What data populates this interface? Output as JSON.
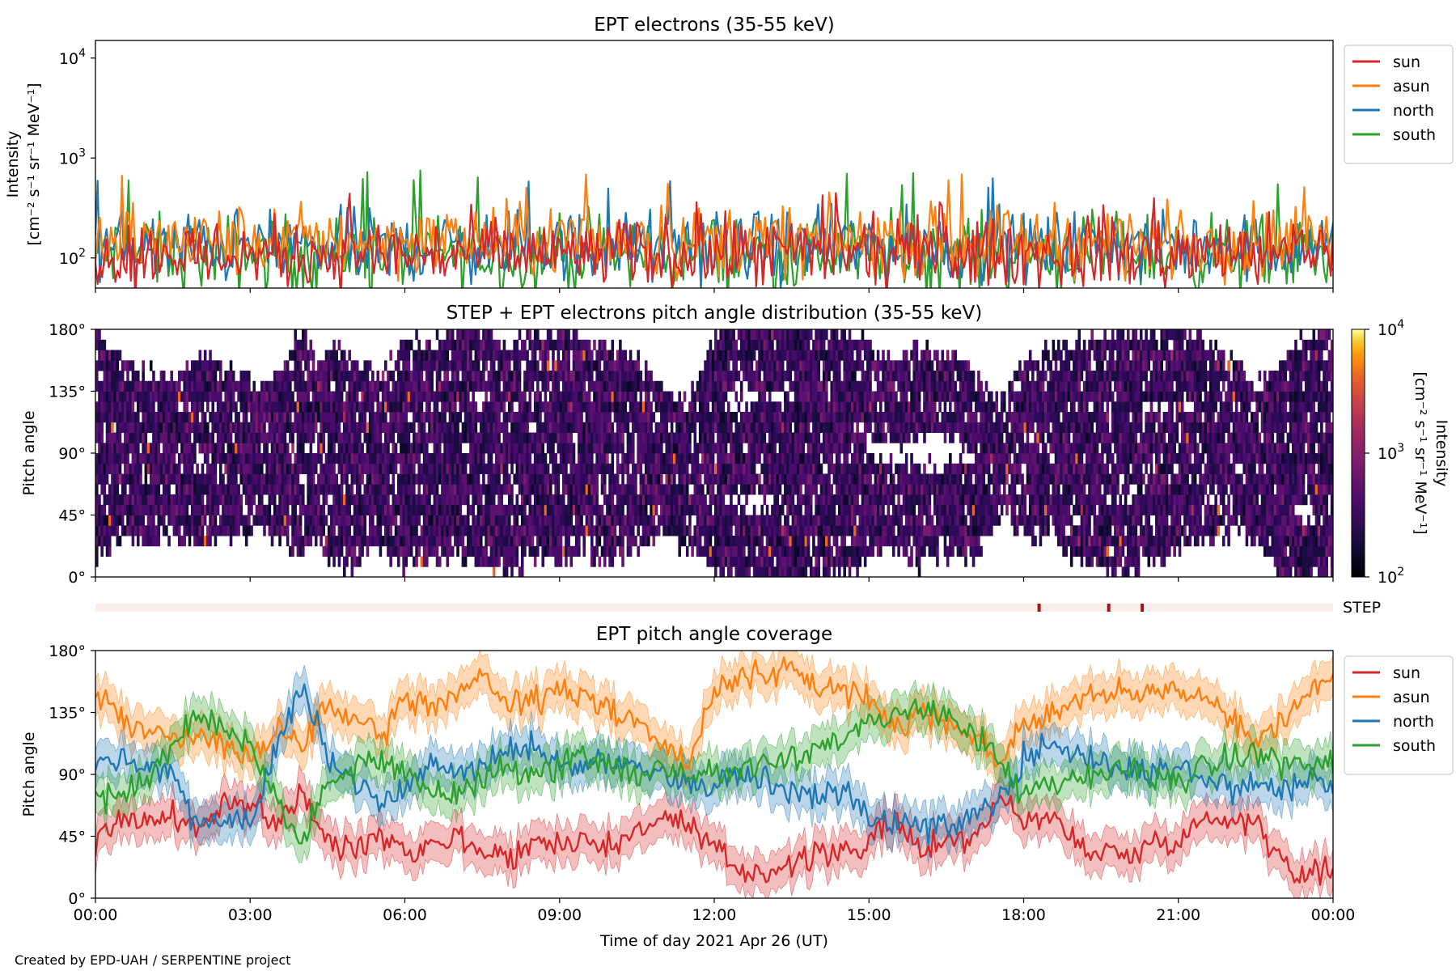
{
  "figure": {
    "xlabel": "Time of day 2021 Apr 26 (UT)",
    "x_ticks": [
      "00:00",
      "03:00",
      "06:00",
      "09:00",
      "12:00",
      "15:00",
      "18:00",
      "21:00",
      "00:00"
    ],
    "credit": "Created by EPD-UAH / SERPENTINE project"
  },
  "chart_data": [
    {
      "type": "line",
      "title": "EPT electrons (35-55 keV)",
      "ylabel_line1": "Intensity",
      "ylabel_line2": "[cm⁻² s⁻¹ sr⁻¹ MeV⁻¹]",
      "yscale": "log",
      "ylim": [
        50,
        15000
      ],
      "y_ticks": [
        {
          "value": 100,
          "base": "10",
          "exp": "2"
        },
        {
          "value": 1000,
          "base": "10",
          "exp": "3"
        },
        {
          "value": 10000,
          "base": "10",
          "exp": "4"
        }
      ],
      "xlim_hours": [
        0,
        24
      ],
      "legend_placement": "outside-right",
      "series": [
        {
          "name": "sun",
          "color": "#d62728",
          "typical": 110,
          "spread": 0.55,
          "peak": 460
        },
        {
          "name": "asun",
          "color": "#ff7f0e",
          "typical": 150,
          "spread": 0.55,
          "peak": 700
        },
        {
          "name": "north",
          "color": "#1f77b4",
          "typical": 130,
          "spread": 0.55,
          "peak": 650
        },
        {
          "name": "south",
          "color": "#2ca02c",
          "typical": 110,
          "spread": 0.6,
          "peak": 760
        }
      ]
    },
    {
      "type": "heatmap",
      "title": "STEP + EPT electrons pitch angle distribution (35-55 keV)",
      "ylabel": "Pitch angle",
      "ylim": [
        0,
        180
      ],
      "y_ticks": [
        "0°",
        "45°",
        "90°",
        "135°",
        "180°"
      ],
      "colorbar": {
        "label_line1": "Intensity",
        "label_line2": "[cm⁻² s⁻¹ sr⁻¹ MeV⁻¹]",
        "scale": "log",
        "range": [
          100,
          10000
        ],
        "ticks": [
          {
            "value": 100,
            "base": "10",
            "exp": "2"
          },
          {
            "value": 1000,
            "base": "10",
            "exp": "3"
          },
          {
            "value": 10000,
            "base": "10",
            "exp": "4"
          }
        ],
        "colormap": "inferno"
      },
      "values_note_typical": 130
    },
    {
      "type": "bar",
      "label": "STEP",
      "background_color": "#fbeee8",
      "mark_color": "#a51414",
      "mark_times_hours": [
        18.3,
        19.65,
        20.3
      ]
    },
    {
      "type": "line",
      "title": "EPT pitch angle coverage",
      "ylabel": "Pitch angle",
      "ylim": [
        0,
        180
      ],
      "y_ticks": [
        "0°",
        "45°",
        "90°",
        "135°",
        "180°"
      ],
      "xlim_hours": [
        0,
        24
      ],
      "legend_placement": "outside-right",
      "series": [
        {
          "name": "sun",
          "color": "#d62728",
          "x_hours": [
            0,
            0.5,
            1,
            1.5,
            2,
            2.5,
            3,
            3.5,
            4,
            4.5,
            5,
            5.5,
            6,
            6.5,
            7,
            7.5,
            8,
            8.5,
            9,
            9.5,
            10,
            10.5,
            11,
            11.5,
            12,
            12.5,
            13,
            13.5,
            14,
            14.5,
            15,
            15.5,
            16,
            16.5,
            17,
            17.5,
            18,
            18.5,
            19,
            19.5,
            20,
            20.5,
            21,
            21.5,
            22,
            22.5,
            23,
            23.5,
            24
          ],
          "values": [
            40,
            60,
            55,
            60,
            50,
            65,
            70,
            55,
            75,
            40,
            35,
            50,
            35,
            40,
            45,
            35,
            30,
            40,
            40,
            45,
            35,
            50,
            60,
            50,
            35,
            20,
            20,
            25,
            30,
            35,
            40,
            55,
            35,
            45,
            40,
            75,
            55,
            60,
            40,
            35,
            30,
            40,
            45,
            55,
            60,
            55,
            30,
            15,
            25
          ]
        },
        {
          "name": "asun",
          "color": "#ff7f0e",
          "x_hours": [
            0,
            0.5,
            1,
            1.5,
            2,
            2.5,
            3,
            3.5,
            4,
            4.5,
            5,
            5.5,
            6,
            6.5,
            7,
            7.5,
            8,
            8.5,
            9,
            9.5,
            10,
            10.5,
            11,
            11.5,
            12,
            12.5,
            13,
            13.5,
            14,
            14.5,
            15,
            15.5,
            16,
            16.5,
            17,
            17.5,
            18,
            18.5,
            19,
            19.5,
            20,
            20.5,
            21,
            21.5,
            22,
            22.5,
            23,
            23.5,
            24
          ],
          "values": [
            150,
            130,
            120,
            115,
            120,
            110,
            100,
            120,
            110,
            140,
            130,
            115,
            145,
            140,
            150,
            160,
            140,
            145,
            150,
            145,
            140,
            130,
            110,
            95,
            150,
            165,
            160,
            165,
            155,
            150,
            145,
            125,
            135,
            130,
            120,
            100,
            125,
            135,
            140,
            150,
            145,
            150,
            155,
            145,
            135,
            110,
            130,
            150,
            160
          ]
        },
        {
          "name": "north",
          "color": "#1f77b4",
          "x_hours": [
            0,
            0.5,
            1,
            1.5,
            2,
            2.5,
            3,
            3.5,
            4,
            4.5,
            5,
            5.5,
            6,
            6.5,
            7,
            7.5,
            8,
            8.5,
            9,
            9.5,
            10,
            10.5,
            11,
            11.5,
            12,
            12.5,
            13,
            13.5,
            14,
            14.5,
            15,
            15.5,
            16,
            16.5,
            17,
            17.5,
            18,
            18.5,
            19,
            19.5,
            20,
            20.5,
            21,
            21.5,
            22,
            22.5,
            23,
            23.5,
            24
          ],
          "values": [
            100,
            105,
            95,
            90,
            50,
            60,
            55,
            110,
            155,
            105,
            85,
            70,
            80,
            100,
            90,
            95,
            105,
            110,
            100,
            95,
            100,
            95,
            90,
            85,
            85,
            90,
            85,
            80,
            75,
            80,
            60,
            50,
            55,
            50,
            60,
            70,
            100,
            110,
            105,
            100,
            95,
            90,
            95,
            85,
            80,
            85,
            80,
            85,
            80
          ]
        },
        {
          "name": "south",
          "color": "#2ca02c",
          "x_hours": [
            0,
            0.5,
            1,
            1.5,
            2,
            2.5,
            3,
            3.5,
            4,
            4.5,
            5,
            5.5,
            6,
            6.5,
            7,
            7.5,
            8,
            8.5,
            9,
            9.5,
            10,
            10.5,
            11,
            11.5,
            12,
            12.5,
            13,
            13.5,
            14,
            14.5,
            15,
            15.5,
            16,
            16.5,
            17,
            17.5,
            18,
            18.5,
            19,
            19.5,
            20,
            20.5,
            21,
            21.5,
            22,
            22.5,
            23,
            23.5,
            24
          ],
          "values": [
            70,
            75,
            85,
            110,
            135,
            120,
            115,
            70,
            40,
            85,
            95,
            105,
            90,
            80,
            75,
            85,
            95,
            90,
            95,
            100,
            95,
            90,
            95,
            90,
            90,
            95,
            100,
            105,
            110,
            115,
            125,
            130,
            140,
            135,
            120,
            100,
            75,
            80,
            85,
            90,
            95,
            90,
            85,
            95,
            100,
            105,
            100,
            95,
            100
          ]
        }
      ]
    }
  ]
}
